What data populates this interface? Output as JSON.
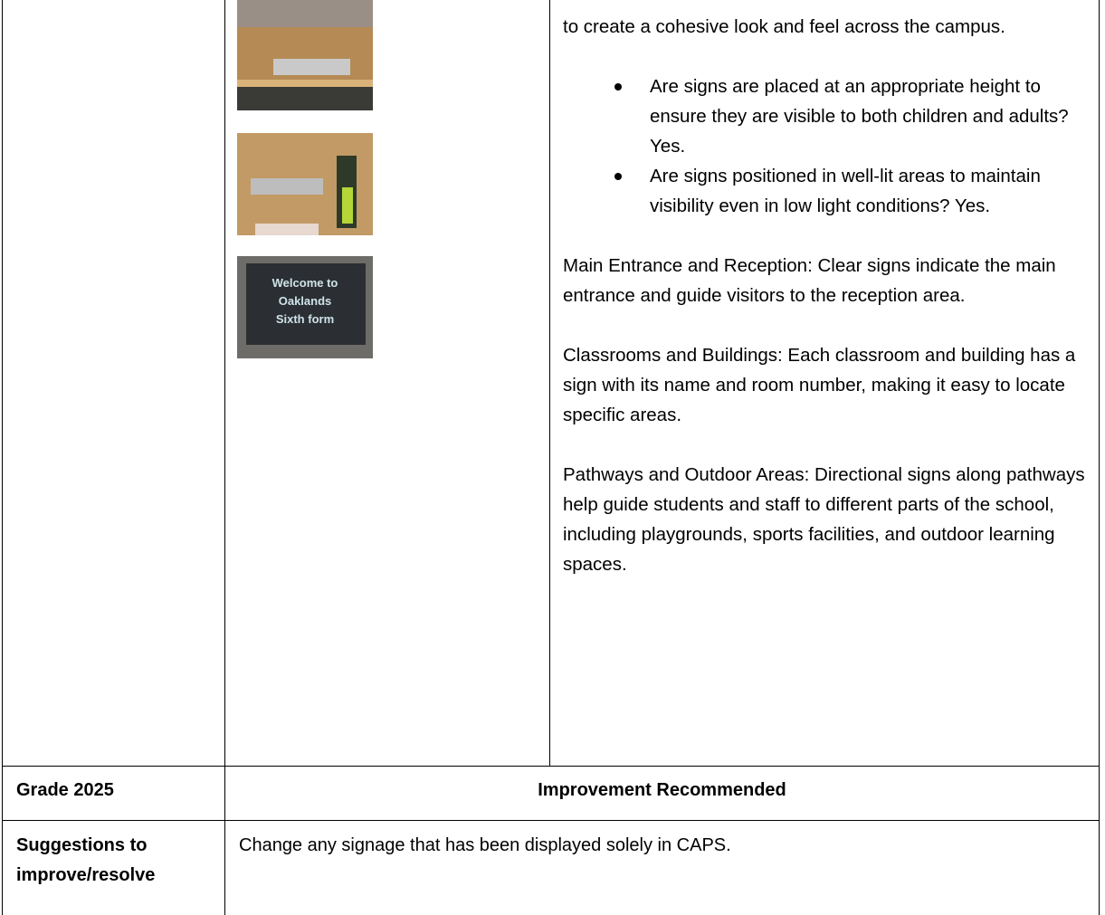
{
  "table": {
    "row1": {
      "sign_photo_text": [
        "Welcome to",
        "Oaklands",
        "Sixth form"
      ],
      "intro": "to create a cohesive look and feel across the campus.",
      "bullets": [
        "Are signs are placed at an appropriate height to ensure they are visible to both children and adults? Yes.",
        "Are signs positioned in well-lit areas to maintain visibility even in low light conditions? Yes."
      ],
      "paragraphs": [
        "Main Entrance and Reception: Clear signs indicate the main entrance and guide visitors to the reception area.",
        "Classrooms and Buildings: Each classroom and building has a sign with its name and room number, making it easy to locate specific areas.",
        "Pathways and Outdoor Areas: Directional signs along pathways help guide students and staff to different parts of the school, including playgrounds, sports facilities, and outdoor learning spaces."
      ]
    },
    "grade_row": {
      "label": "Grade 2025",
      "value": "Improvement Recommended"
    },
    "suggestions_row": {
      "label": "Suggestions to improve/resolve",
      "value": "Change any signage that has been displayed solely in CAPS."
    }
  }
}
